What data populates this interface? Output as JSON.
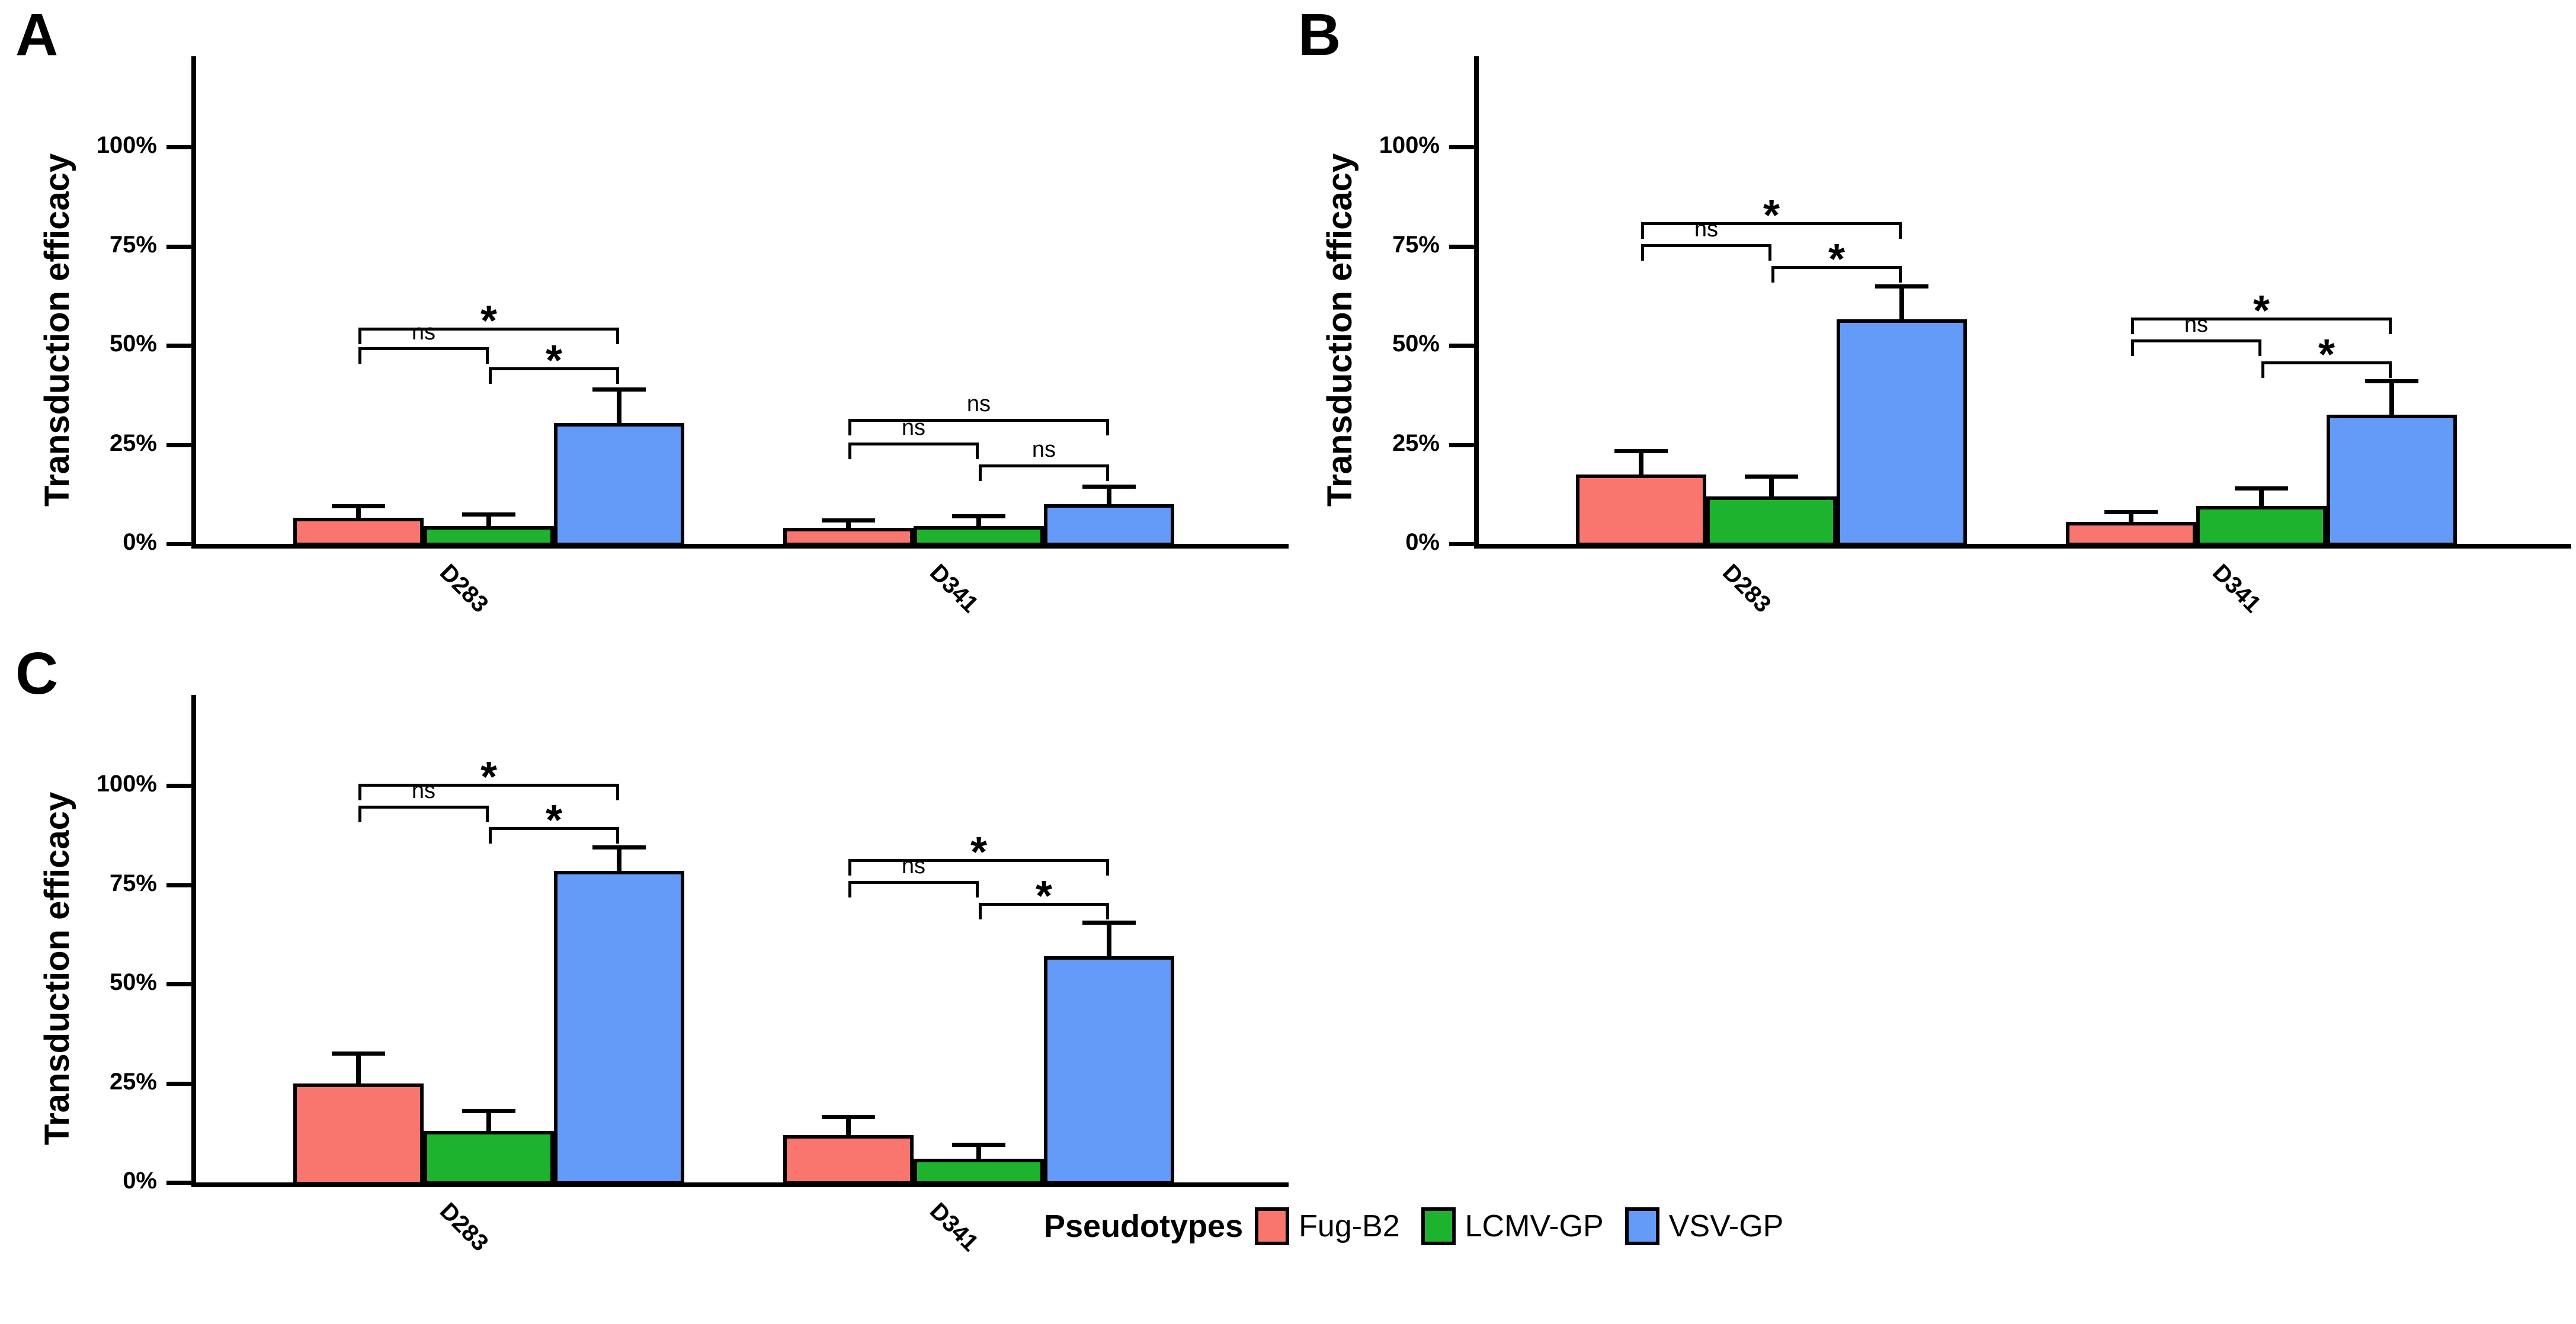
{
  "figure": {
    "background": "#ffffff",
    "y_axis_title": "Transduction efficacy",
    "y_ticks": {
      "values": [
        0,
        25,
        50,
        75,
        100
      ],
      "labels": [
        "0%",
        "25%",
        "50%",
        "75%",
        "100%"
      ]
    },
    "legend": {
      "title": "Pseudotypes",
      "items": [
        {
          "label": "Fug-B2",
          "color": "#F8766D"
        },
        {
          "label": "LCMV-GP",
          "color": "#1DB32F"
        },
        {
          "label": "VSV-GP",
          "color": "#649BF9"
        }
      ]
    }
  },
  "chart_data": [
    {
      "panel": "A",
      "type": "bar",
      "ylabel": "Transduction efficacy",
      "ylim": [
        0,
        100
      ],
      "grid": false,
      "categories": [
        "D283",
        "D341"
      ],
      "series": [
        {
          "name": "Fug-B2",
          "color": "#F8766D",
          "values": [
            6.5,
            4.0
          ],
          "error_up": [
            3.0,
            2.0
          ]
        },
        {
          "name": "LCMV-GP",
          "color": "#1DB32F",
          "values": [
            4.5,
            4.5
          ],
          "error_up": [
            3.0,
            2.5
          ]
        },
        {
          "name": "VSV-GP",
          "color": "#649BF9",
          "values": [
            30.5,
            10.0
          ],
          "error_up": [
            8.5,
            4.5
          ]
        }
      ],
      "significance": [
        {
          "category": "D283",
          "brackets": [
            {
              "between": [
                "Fug-B2",
                "LCMV-GP"
              ],
              "label": "ns",
              "y": 49.5
            },
            {
              "between": [
                "Fug-B2",
                "VSV-GP"
              ],
              "label": "*",
              "y": 54.5
            },
            {
              "between": [
                "LCMV-GP",
                "VSV-GP"
              ],
              "label": "*",
              "y": 44.5
            }
          ]
        },
        {
          "category": "D341",
          "brackets": [
            {
              "between": [
                "Fug-B2",
                "LCMV-GP"
              ],
              "label": "ns",
              "y": 25.5
            },
            {
              "between": [
                "Fug-B2",
                "VSV-GP"
              ],
              "label": "ns",
              "y": 31.5
            },
            {
              "between": [
                "LCMV-GP",
                "VSV-GP"
              ],
              "label": "ns",
              "y": 20.0
            }
          ]
        }
      ]
    },
    {
      "panel": "B",
      "type": "bar",
      "ylabel": "Transduction efficacy",
      "ylim": [
        0,
        100
      ],
      "grid": false,
      "categories": [
        "D283",
        "D341"
      ],
      "series": [
        {
          "name": "Fug-B2",
          "color": "#F8766D",
          "values": [
            17.5,
            5.5
          ],
          "error_up": [
            6.0,
            2.5
          ]
        },
        {
          "name": "LCMV-GP",
          "color": "#1DB32F",
          "values": [
            12.0,
            9.5
          ],
          "error_up": [
            5.0,
            4.5
          ]
        },
        {
          "name": "VSV-GP",
          "color": "#649BF9",
          "values": [
            56.5,
            32.5
          ],
          "error_up": [
            8.5,
            8.5
          ]
        }
      ],
      "significance": [
        {
          "category": "D283",
          "brackets": [
            {
              "between": [
                "Fug-B2",
                "LCMV-GP"
              ],
              "label": "ns",
              "y": 75.5
            },
            {
              "between": [
                "Fug-B2",
                "VSV-GP"
              ],
              "label": "*",
              "y": 81.0
            },
            {
              "between": [
                "LCMV-GP",
                "VSV-GP"
              ],
              "label": "*",
              "y": 70.0
            }
          ]
        },
        {
          "category": "D341",
          "brackets": [
            {
              "between": [
                "Fug-B2",
                "LCMV-GP"
              ],
              "label": "ns",
              "y": 51.5
            },
            {
              "between": [
                "Fug-B2",
                "VSV-GP"
              ],
              "label": "*",
              "y": 57.0
            },
            {
              "between": [
                "LCMV-GP",
                "VSV-GP"
              ],
              "label": "*",
              "y": 46.0
            }
          ]
        }
      ]
    },
    {
      "panel": "C",
      "type": "bar",
      "ylabel": "Transduction efficacy",
      "ylim": [
        0,
        100
      ],
      "grid": false,
      "categories": [
        "D283",
        "D341"
      ],
      "series": [
        {
          "name": "Fug-B2",
          "color": "#F8766D",
          "values": [
            25.0,
            12.0
          ],
          "error_up": [
            7.5,
            4.5
          ]
        },
        {
          "name": "LCMV-GP",
          "color": "#1DB32F",
          "values": [
            13.0,
            6.0
          ],
          "error_up": [
            5.0,
            3.5
          ]
        },
        {
          "name": "VSV-GP",
          "color": "#649BF9",
          "values": [
            78.5,
            57.0
          ],
          "error_up": [
            6.0,
            8.5
          ]
        }
      ],
      "significance": [
        {
          "category": "D283",
          "brackets": [
            {
              "between": [
                "Fug-B2",
                "LCMV-GP"
              ],
              "label": "ns",
              "y": 95.0
            },
            {
              "between": [
                "Fug-B2",
                "VSV-GP"
              ],
              "label": "*",
              "y": 100.5
            },
            {
              "between": [
                "LCMV-GP",
                "VSV-GP"
              ],
              "label": "*",
              "y": 89.5
            }
          ]
        },
        {
          "category": "D341",
          "brackets": [
            {
              "between": [
                "Fug-B2",
                "LCMV-GP"
              ],
              "label": "ns",
              "y": 76.0
            },
            {
              "between": [
                "Fug-B2",
                "VSV-GP"
              ],
              "label": "*",
              "y": 81.5
            },
            {
              "between": [
                "LCMV-GP",
                "VSV-GP"
              ],
              "label": "*",
              "y": 70.5
            }
          ]
        }
      ]
    }
  ]
}
